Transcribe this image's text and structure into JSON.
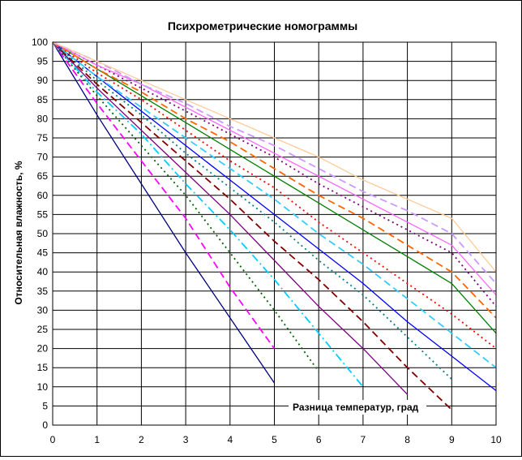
{
  "chart_data": {
    "type": "line",
    "title": "Психрометрические  номограммы",
    "ylabel": "Относительная влажность, %",
    "annotation": "Разница температур, град",
    "xlim": [
      0,
      10
    ],
    "ylim": [
      0,
      100
    ],
    "grid": true,
    "legend": "none",
    "x_ticks": [
      "0",
      "1",
      "2",
      "3",
      "4",
      "5",
      "6",
      "7",
      "8",
      "9",
      "10"
    ],
    "y_ticks": [
      "0",
      "5",
      "10",
      "15",
      "20",
      "25",
      "30",
      "35",
      "40",
      "45",
      "50",
      "55",
      "60",
      "65",
      "70",
      "75",
      "80",
      "85",
      "90",
      "95",
      "100"
    ],
    "series": [
      {
        "color": "#000080",
        "dash": "solid",
        "x": [
          0,
          1,
          2,
          3,
          4,
          5
        ],
        "y": [
          100,
          81,
          63,
          45,
          28,
          11
        ]
      },
      {
        "color": "#FF00FF",
        "dash": "dashed",
        "x": [
          0,
          1,
          2,
          3,
          4,
          5
        ],
        "y": [
          100,
          84,
          69,
          54,
          36,
          20
        ]
      },
      {
        "color": "#006400",
        "dash": "dotted",
        "x": [
          0,
          1,
          2,
          3,
          4,
          5,
          6
        ],
        "y": [
          100,
          86,
          73,
          60,
          45,
          30,
          14
        ]
      },
      {
        "color": "#00CCFF",
        "dash": "dashdot",
        "x": [
          0,
          1,
          2,
          3,
          4,
          5,
          6,
          7
        ],
        "y": [
          100,
          87,
          76,
          63,
          51,
          38,
          24,
          10
        ]
      },
      {
        "color": "#800080",
        "dash": "solid",
        "x": [
          0,
          1,
          2,
          3,
          4,
          5,
          6,
          7,
          8
        ],
        "y": [
          100,
          88,
          77,
          66,
          55,
          43,
          31,
          20,
          8
        ]
      },
      {
        "color": "#800000",
        "dash": "dashed",
        "x": [
          0,
          1,
          2,
          3,
          4,
          5,
          6,
          7,
          8,
          9
        ],
        "y": [
          100,
          89,
          79,
          69,
          59,
          48,
          38,
          27,
          15,
          4
        ]
      },
      {
        "color": "#008080",
        "dash": "dotted",
        "x": [
          0,
          1,
          2,
          3,
          4,
          5,
          6,
          7,
          8,
          9
        ],
        "y": [
          100,
          90,
          81,
          71,
          62,
          53,
          43,
          34,
          23,
          12
        ]
      },
      {
        "color": "#0000FF",
        "dash": "solid",
        "x": [
          0,
          1,
          2,
          3,
          4,
          5,
          6,
          7,
          8,
          9,
          10
        ],
        "y": [
          100,
          91,
          82,
          73,
          64,
          55,
          46,
          37,
          27,
          18,
          9
        ]
      },
      {
        "color": "#33CCFF",
        "dash": "dashed",
        "x": [
          0,
          1,
          2,
          3,
          4,
          5,
          6,
          7,
          8,
          9,
          10
        ],
        "y": [
          100,
          91,
          83,
          75,
          67,
          59,
          50,
          42,
          33,
          24,
          15
        ]
      },
      {
        "color": "#FF0000",
        "dash": "dotted",
        "x": [
          0,
          1,
          2,
          3,
          4,
          5,
          6,
          7,
          8,
          9,
          10
        ],
        "y": [
          100,
          92,
          85,
          77,
          69,
          62,
          53,
          45,
          37,
          29,
          20
        ]
      },
      {
        "color": "#008000",
        "dash": "solid",
        "x": [
          0,
          1,
          2,
          3,
          4,
          5,
          6,
          7,
          8,
          9,
          10
        ],
        "y": [
          100,
          93,
          86,
          79,
          72,
          65,
          58,
          51,
          44,
          37,
          24
        ]
      },
      {
        "color": "#FF6600",
        "dash": "dashed",
        "x": [
          0,
          1,
          2,
          3,
          4,
          5,
          6,
          7,
          8,
          9,
          10
        ],
        "y": [
          100,
          93,
          87,
          80,
          74,
          67,
          60,
          54,
          47,
          40,
          28
        ]
      },
      {
        "color": "#800080",
        "dash": "dotted",
        "x": [
          0,
          1,
          2,
          3,
          4,
          5,
          6,
          7,
          8,
          9,
          10
        ],
        "y": [
          100,
          94,
          88,
          82,
          76,
          70,
          63,
          57,
          51,
          45,
          31
        ]
      },
      {
        "color": "#FF66FF",
        "dash": "solid",
        "x": [
          0,
          1,
          2,
          3,
          4,
          5,
          6,
          7,
          8,
          9,
          10
        ],
        "y": [
          100,
          94,
          89,
          83,
          77,
          71,
          65,
          59,
          53,
          47,
          34
        ]
      },
      {
        "color": "#CC99FF",
        "dash": "dashed",
        "x": [
          0,
          1,
          2,
          3,
          4,
          5,
          6,
          7,
          8,
          9,
          10
        ],
        "y": [
          100,
          95,
          89,
          84,
          78,
          73,
          67,
          61,
          56,
          50,
          37
        ]
      },
      {
        "color": "#FFCC99",
        "dash": "solid",
        "x": [
          0,
          1,
          2,
          3,
          4,
          5,
          6,
          7,
          8,
          9,
          10
        ],
        "y": [
          100,
          95,
          90,
          85,
          80,
          75,
          70,
          64,
          59,
          54,
          40
        ]
      }
    ]
  }
}
